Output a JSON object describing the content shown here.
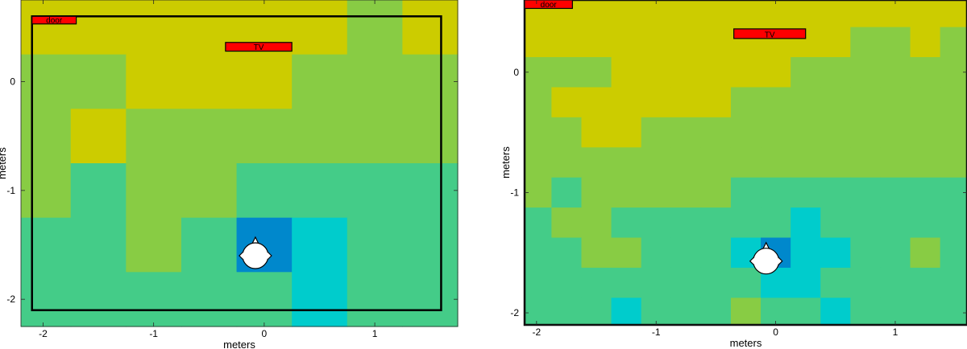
{
  "colors": {
    "c0": "#CCCC00",
    "c1": "#88CC44",
    "c2": "#44CC88",
    "c3": "#00CCCC",
    "c4": "#0088CC",
    "marker": "#FF0000",
    "outline": "#000000",
    "head": "#FFFFFF"
  },
  "chart_data": [
    {
      "type": "heatmap",
      "xlabel": "meters",
      "ylabel": "meters",
      "xlim": [
        -2.2,
        1.75
      ],
      "ylim": [
        -2.25,
        0.75
      ],
      "xticks": [
        -2,
        -1,
        0,
        1
      ],
      "xtick_labels": [
        "-2",
        "-1",
        "0",
        "1"
      ],
      "yticks": [
        -2,
        -1,
        0
      ],
      "ytick_labels": [
        "-2",
        "-1",
        "0"
      ],
      "x_edges": [
        -2.2,
        -1.75,
        -1.25,
        -0.75,
        -0.25,
        0.25,
        0.75,
        1.25,
        1.75
      ],
      "y_edges": [
        0.75,
        0.25,
        -0.25,
        -0.75,
        -1.25,
        -1.75,
        -2.25
      ],
      "grid": [
        [
          0,
          0,
          0,
          0,
          0,
          0,
          1,
          0
        ],
        [
          1,
          1,
          0,
          0,
          0,
          1,
          1,
          1
        ],
        [
          1,
          0,
          1,
          1,
          1,
          1,
          1,
          1
        ],
        [
          1,
          2,
          1,
          1,
          2,
          2,
          2,
          2
        ],
        [
          2,
          2,
          1,
          2,
          4,
          3,
          2,
          2
        ],
        [
          2,
          2,
          2,
          2,
          2,
          3,
          2,
          2
        ]
      ],
      "room": {
        "x": [
          -2.1,
          1.6
        ],
        "y": [
          -2.1,
          0.6
        ]
      },
      "markers": [
        {
          "label": "door",
          "x": [
            -2.1,
            -1.7
          ],
          "y": [
            0.53,
            0.6
          ]
        },
        {
          "label": "TV",
          "x": [
            -0.35,
            0.25
          ],
          "y": [
            0.28,
            0.36
          ]
        }
      ],
      "head": {
        "x": -0.08,
        "y": -1.6
      }
    },
    {
      "type": "heatmap",
      "xlabel": "meters",
      "ylabel": "meters",
      "xlim": [
        -2.1,
        1.6
      ],
      "ylim": [
        -2.1,
        0.6
      ],
      "xticks": [
        -2,
        -1,
        0,
        1
      ],
      "xtick_labels": [
        "-2",
        "-1",
        "0",
        "1"
      ],
      "yticks": [
        -2,
        -1,
        0
      ],
      "ytick_labels": [
        "-2",
        "-1",
        "0"
      ],
      "x_edges": [
        -2.1,
        -1.875,
        -1.625,
        -1.375,
        -1.125,
        -0.875,
        -0.625,
        -0.375,
        -0.125,
        0.125,
        0.375,
        0.625,
        0.875,
        1.125,
        1.375,
        1.6
      ],
      "y_edges": [
        0.6,
        0.375,
        0.125,
        -0.125,
        -0.375,
        -0.625,
        -0.875,
        -1.125,
        -1.375,
        -1.625,
        -1.875,
        -2.1
      ],
      "grid": [
        [
          0,
          0,
          0,
          0,
          0,
          0,
          0,
          0,
          0,
          0,
          0,
          0,
          0,
          0,
          0
        ],
        [
          0,
          0,
          0,
          0,
          0,
          0,
          0,
          0,
          0,
          0,
          0,
          1,
          1,
          0,
          1
        ],
        [
          1,
          1,
          1,
          0,
          0,
          0,
          0,
          0,
          0,
          1,
          1,
          1,
          1,
          1,
          1
        ],
        [
          1,
          0,
          0,
          0,
          0,
          0,
          0,
          1,
          1,
          1,
          1,
          1,
          1,
          1,
          1
        ],
        [
          1,
          1,
          0,
          0,
          1,
          1,
          1,
          1,
          1,
          1,
          1,
          1,
          1,
          1,
          1
        ],
        [
          1,
          1,
          1,
          1,
          1,
          1,
          1,
          1,
          1,
          1,
          1,
          1,
          1,
          1,
          1
        ],
        [
          1,
          2,
          1,
          1,
          1,
          1,
          1,
          2,
          2,
          2,
          2,
          2,
          2,
          2,
          2
        ],
        [
          2,
          1,
          1,
          2,
          2,
          2,
          2,
          2,
          2,
          3,
          2,
          2,
          2,
          2,
          2
        ],
        [
          2,
          2,
          1,
          1,
          2,
          2,
          2,
          3,
          4,
          3,
          3,
          2,
          2,
          1,
          2
        ],
        [
          2,
          2,
          2,
          2,
          2,
          2,
          2,
          2,
          3,
          3,
          2,
          2,
          2,
          2,
          2
        ],
        [
          2,
          2,
          2,
          3,
          2,
          2,
          2,
          1,
          2,
          2,
          3,
          2,
          2,
          2,
          2
        ]
      ],
      "room": {
        "x": [
          -2.1,
          1.6
        ],
        "y": [
          -2.1,
          0.6
        ]
      },
      "markers": [
        {
          "label": "door",
          "x": [
            -2.1,
            -1.7
          ],
          "y": [
            0.53,
            0.6
          ]
        },
        {
          "label": "TV",
          "x": [
            -0.35,
            0.25
          ],
          "y": [
            0.28,
            0.36
          ]
        }
      ],
      "head": {
        "x": -0.08,
        "y": -1.57
      }
    }
  ]
}
